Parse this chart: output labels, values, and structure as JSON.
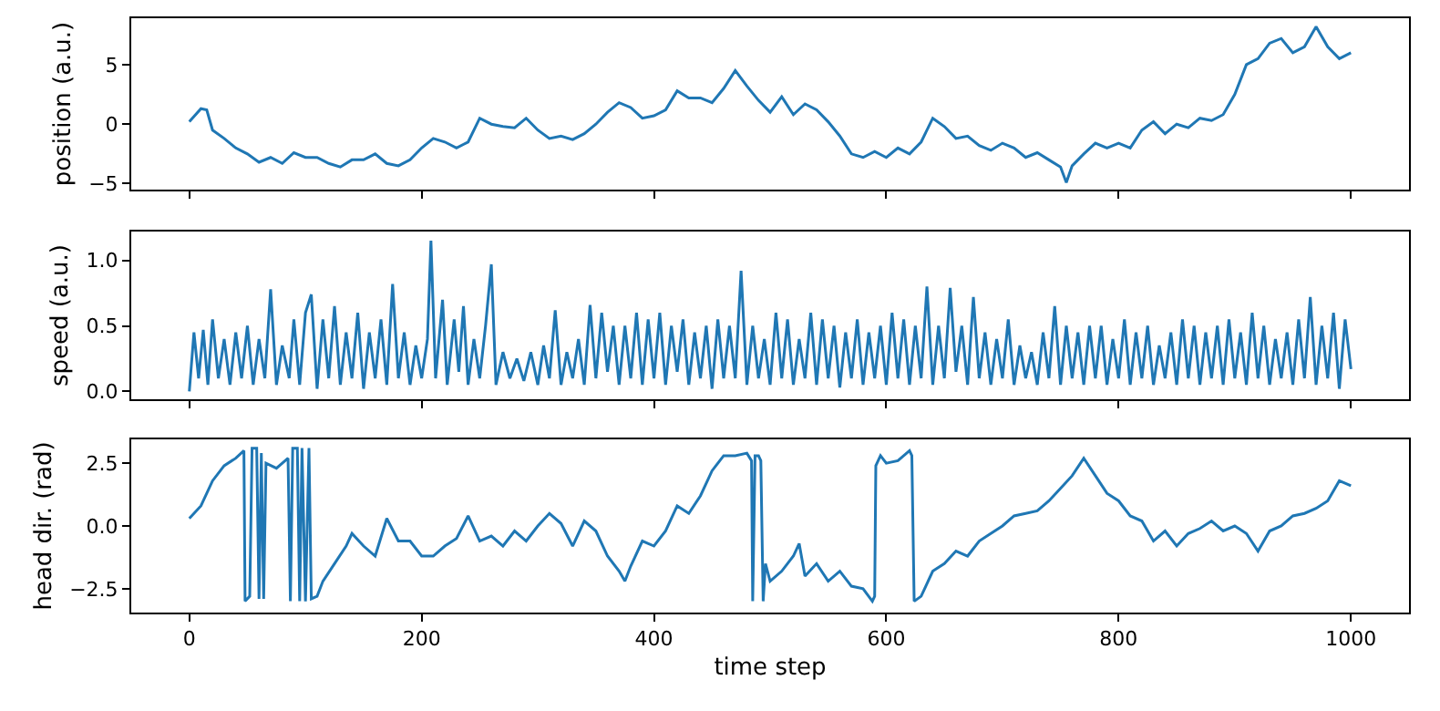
{
  "chart_data": [
    {
      "type": "line",
      "ylabel": "position (a.u.)",
      "xlim": [
        -50,
        1050
      ],
      "xticks": [
        0,
        200,
        400,
        600,
        800,
        1000
      ],
      "ylim": [
        -5.5,
        8.9
      ],
      "yticks": [
        {
          "value": -5,
          "label": "−5"
        },
        0,
        5
      ],
      "tick_labels": "y",
      "x": [
        0,
        10,
        15,
        20,
        30,
        40,
        50,
        60,
        70,
        80,
        90,
        100,
        110,
        120,
        130,
        140,
        150,
        160,
        170,
        180,
        190,
        200,
        210,
        220,
        230,
        240,
        250,
        260,
        270,
        280,
        290,
        300,
        310,
        320,
        330,
        340,
        350,
        360,
        370,
        380,
        390,
        400,
        410,
        420,
        430,
        440,
        450,
        460,
        470,
        480,
        490,
        500,
        510,
        520,
        530,
        540,
        550,
        560,
        570,
        580,
        590,
        600,
        610,
        620,
        630,
        640,
        650,
        660,
        670,
        680,
        690,
        700,
        710,
        720,
        730,
        740,
        750,
        755,
        760,
        770,
        780,
        790,
        800,
        810,
        820,
        830,
        840,
        850,
        860,
        870,
        880,
        890,
        900,
        910,
        920,
        930,
        940,
        950,
        960,
        970,
        980,
        990,
        1000
      ],
      "series": [
        {
          "color": "#1f77b4",
          "values": [
            0.2,
            1.3,
            1.2,
            -0.5,
            -1.2,
            -2,
            -2.5,
            -3.2,
            -2.8,
            -3.3,
            -2.4,
            -2.8,
            -2.8,
            -3.3,
            -3.6,
            -3.0,
            -3.0,
            -2.5,
            -3.3,
            -3.5,
            -3.0,
            -2.0,
            -1.2,
            -1.5,
            -2.0,
            -1.5,
            0.5,
            0,
            -0.2,
            -0.3,
            0.5,
            -0.5,
            -1.2,
            -1.0,
            -1.3,
            -0.8,
            0,
            1,
            1.8,
            1.4,
            0.5,
            0.7,
            1.2,
            2.8,
            2.2,
            2.2,
            1.8,
            3.0,
            4.5,
            3.2,
            2.0,
            1.0,
            2.3,
            0.8,
            1.7,
            1.2,
            0.2,
            -1.0,
            -2.5,
            -2.8,
            -2.3,
            -2.8,
            -2.0,
            -2.5,
            -1.5,
            0.5,
            -0.2,
            -1.2,
            -1.0,
            -1.8,
            -2.2,
            -1.6,
            -2.0,
            -2.8,
            -2.4,
            -3.0,
            -3.6,
            -4.9,
            -3.5,
            -2.5,
            -1.6,
            -2.0,
            -1.6,
            -2.0,
            -0.5,
            0.2,
            -0.8,
            0,
            -0.3,
            0.5,
            0.3,
            0.8,
            2.5,
            5,
            5.5,
            6.8,
            7.2,
            6.0,
            6.5,
            8.2,
            6.5,
            5.5,
            6.0
          ]
        }
      ]
    },
    {
      "type": "line",
      "ylabel": "speed (a.u.)",
      "xlim": [
        -50,
        1050
      ],
      "xticks": [
        0,
        200,
        400,
        600,
        800,
        1000
      ],
      "ylim": [
        -0.06,
        1.22
      ],
      "yticks": [
        {
          "value": 0,
          "label": "0.0"
        },
        0.5,
        {
          "value": 1,
          "label": "1.0"
        }
      ],
      "tick_labels": "y",
      "x": [
        0,
        4,
        8,
        12,
        16,
        20,
        25,
        30,
        35,
        40,
        45,
        50,
        55,
        60,
        65,
        70,
        75,
        80,
        86,
        90,
        95,
        100,
        105,
        110,
        115,
        120,
        125,
        130,
        135,
        140,
        145,
        150,
        155,
        160,
        165,
        170,
        175,
        180,
        185,
        190,
        195,
        200,
        205,
        208,
        212,
        218,
        222,
        228,
        232,
        236,
        240,
        245,
        250,
        255,
        260,
        264,
        270,
        276,
        282,
        288,
        294,
        300,
        305,
        310,
        315,
        320,
        325,
        330,
        335,
        340,
        345,
        350,
        355,
        360,
        365,
        370,
        375,
        380,
        385,
        390,
        395,
        400,
        405,
        410,
        415,
        420,
        425,
        430,
        435,
        440,
        445,
        450,
        455,
        460,
        465,
        470,
        475,
        480,
        485,
        490,
        495,
        500,
        505,
        510,
        515,
        520,
        525,
        530,
        535,
        540,
        545,
        550,
        555,
        560,
        565,
        570,
        575,
        580,
        585,
        590,
        595,
        600,
        605,
        610,
        615,
        620,
        625,
        630,
        635,
        640,
        645,
        650,
        655,
        660,
        665,
        670,
        675,
        680,
        685,
        690,
        695,
        700,
        705,
        710,
        715,
        720,
        725,
        730,
        735,
        740,
        745,
        750,
        755,
        760,
        765,
        770,
        775,
        780,
        785,
        790,
        795,
        800,
        805,
        810,
        815,
        820,
        825,
        830,
        835,
        840,
        845,
        850,
        855,
        860,
        865,
        870,
        875,
        880,
        885,
        890,
        895,
        900,
        905,
        910,
        915,
        920,
        925,
        930,
        935,
        940,
        945,
        950,
        955,
        960,
        965,
        970,
        975,
        980,
        985,
        990,
        995,
        1000
      ],
      "series": [
        {
          "color": "#1f77b4",
          "values": [
            0.0,
            0.45,
            0.1,
            0.47,
            0.05,
            0.55,
            0.1,
            0.4,
            0.05,
            0.45,
            0.1,
            0.5,
            0.05,
            0.4,
            0.1,
            0.78,
            0.05,
            0.35,
            0.1,
            0.55,
            0.05,
            0.6,
            0.74,
            0.02,
            0.55,
            0.1,
            0.65,
            0.05,
            0.45,
            0.1,
            0.6,
            0.02,
            0.45,
            0.1,
            0.55,
            0.05,
            0.82,
            0.1,
            0.45,
            0.05,
            0.35,
            0.1,
            0.4,
            1.15,
            0.1,
            0.7,
            0.05,
            0.55,
            0.15,
            0.65,
            0.05,
            0.4,
            0.1,
            0.5,
            0.97,
            0.05,
            0.3,
            0.1,
            0.25,
            0.08,
            0.3,
            0.05,
            0.35,
            0.1,
            0.62,
            0.05,
            0.3,
            0.1,
            0.4,
            0.05,
            0.66,
            0.1,
            0.6,
            0.15,
            0.5,
            0.05,
            0.5,
            0.1,
            0.6,
            0.05,
            0.55,
            0.1,
            0.6,
            0.05,
            0.5,
            0.15,
            0.55,
            0.05,
            0.45,
            0.1,
            0.5,
            0.02,
            0.55,
            0.1,
            0.5,
            0.1,
            0.92,
            0.05,
            0.5,
            0.1,
            0.4,
            0.05,
            0.6,
            0.1,
            0.55,
            0.05,
            0.4,
            0.1,
            0.6,
            0.05,
            0.55,
            0.1,
            0.5,
            0.03,
            0.45,
            0.1,
            0.55,
            0.05,
            0.45,
            0.1,
            0.5,
            0.05,
            0.6,
            0.1,
            0.55,
            0.05,
            0.5,
            0.1,
            0.8,
            0.05,
            0.5,
            0.1,
            0.79,
            0.15,
            0.5,
            0.05,
            0.72,
            0.1,
            0.45,
            0.05,
            0.4,
            0.1,
            0.55,
            0.05,
            0.35,
            0.1,
            0.3,
            0.05,
            0.45,
            0.1,
            0.65,
            0.05,
            0.5,
            0.1,
            0.45,
            0.05,
            0.5,
            0.1,
            0.5,
            0.05,
            0.4,
            0.1,
            0.55,
            0.05,
            0.45,
            0.1,
            0.5,
            0.05,
            0.35,
            0.1,
            0.45,
            0.05,
            0.55,
            0.1,
            0.5,
            0.05,
            0.45,
            0.1,
            0.5,
            0.05,
            0.55,
            0.1,
            0.45,
            0.05,
            0.6,
            0.1,
            0.5,
            0.05,
            0.4,
            0.1,
            0.45,
            0.05,
            0.55,
            0.1,
            0.72,
            0.05,
            0.5,
            0.1,
            0.6,
            0.02,
            0.55,
            0.17
          ]
        }
      ]
    },
    {
      "type": "line",
      "xlabel": "time step",
      "ylabel": "head dir. (rad)",
      "xlim": [
        -50,
        1050
      ],
      "xticks": [
        0,
        200,
        400,
        600,
        800,
        1000
      ],
      "ylim": [
        -3.45,
        3.45
      ],
      "yticks": [
        {
          "value": -2.5,
          "label": "−2.5"
        },
        {
          "value": 0,
          "label": "0.0"
        },
        2.5
      ],
      "x": [
        0,
        10,
        20,
        30,
        40,
        47,
        48,
        52,
        54,
        58,
        60,
        62,
        64,
        66,
        75,
        85,
        87,
        89,
        93,
        95,
        97,
        100,
        103,
        105,
        110,
        115,
        125,
        135,
        140,
        150,
        160,
        170,
        180,
        190,
        200,
        210,
        220,
        230,
        240,
        250,
        260,
        270,
        280,
        290,
        300,
        310,
        320,
        330,
        340,
        350,
        360,
        370,
        375,
        380,
        390,
        400,
        410,
        420,
        430,
        440,
        450,
        460,
        470,
        480,
        484,
        485,
        487,
        490,
        492,
        494,
        496,
        500,
        510,
        520,
        525,
        530,
        540,
        550,
        560,
        570,
        580,
        588,
        590,
        591,
        595,
        600,
        610,
        620,
        622,
        624,
        630,
        640,
        650,
        660,
        670,
        680,
        690,
        700,
        710,
        720,
        730,
        740,
        750,
        760,
        770,
        780,
        790,
        800,
        810,
        820,
        830,
        840,
        850,
        860,
        870,
        880,
        890,
        900,
        910,
        920,
        930,
        940,
        950,
        960,
        970,
        980,
        990,
        1000
      ],
      "series": [
        {
          "color": "#1f77b4",
          "values": [
            0.3,
            0.8,
            1.8,
            2.4,
            2.7,
            3.0,
            -3.0,
            -2.8,
            3.1,
            3.1,
            -2.9,
            2.9,
            -2.9,
            2.5,
            2.3,
            2.7,
            -3.0,
            3.1,
            3.1,
            -3.0,
            3.1,
            -3.0,
            3.1,
            -2.9,
            -2.8,
            -2.2,
            -1.5,
            -0.8,
            -0.3,
            -0.8,
            -1.2,
            0.3,
            -0.6,
            -0.6,
            -1.2,
            -1.2,
            -0.8,
            -0.5,
            0.4,
            -0.6,
            -0.4,
            -0.8,
            -0.2,
            -0.6,
            0.0,
            0.5,
            0.1,
            -0.8,
            0.2,
            -0.2,
            -1.2,
            -1.8,
            -2.2,
            -1.6,
            -0.6,
            -0.8,
            -0.2,
            0.8,
            0.5,
            1.2,
            2.2,
            2.8,
            2.8,
            2.9,
            2.6,
            -3.0,
            2.8,
            2.8,
            2.6,
            -3.0,
            -1.5,
            -2.2,
            -1.8,
            -1.2,
            -0.7,
            -2.0,
            -1.5,
            -2.2,
            -1.8,
            -2.4,
            -2.5,
            -3.0,
            -2.8,
            2.4,
            2.8,
            2.5,
            2.6,
            3.0,
            2.8,
            -3.0,
            -2.8,
            -1.8,
            -1.5,
            -1.0,
            -1.2,
            -0.6,
            -0.3,
            0.0,
            0.4,
            0.5,
            0.6,
            1.0,
            1.5,
            2.0,
            2.7,
            2.0,
            1.3,
            1.0,
            0.4,
            0.2,
            -0.6,
            -0.2,
            -0.8,
            -0.3,
            -0.1,
            0.2,
            -0.2,
            0.0,
            -0.3,
            -1.0,
            -0.2,
            0.0,
            0.4,
            0.5,
            0.7,
            1.0,
            1.8,
            1.6
          ]
        }
      ]
    }
  ]
}
